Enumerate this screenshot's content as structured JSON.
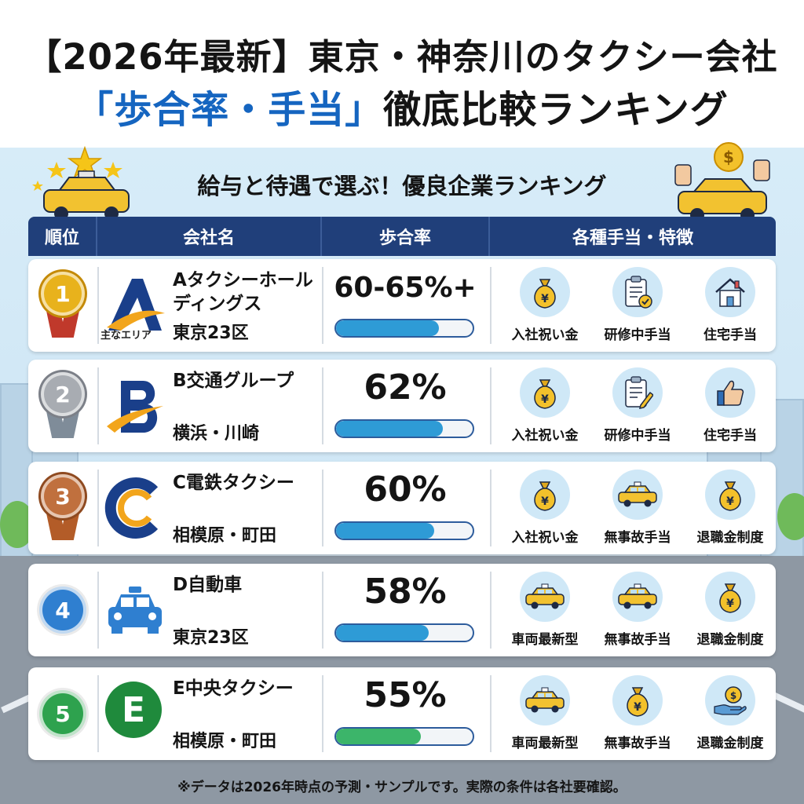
{
  "title": {
    "line1": "【2026年最新】東京・神奈川のタクシー会社",
    "line2_highlight": "「歩合率・手当」",
    "line2_rest": "徹底比較ランキング"
  },
  "subtitle": "給与と待遇で選ぶ！優良企業ランキング",
  "header": {
    "rank": "順位",
    "company": "会社名",
    "rate": "歩合率",
    "features": "各種手当・特徴"
  },
  "rows": [
    {
      "rank": "1",
      "logo_letter": "A",
      "area_caption": "主なエリア",
      "name": "Aタクシーホールディングス",
      "area": "東京23区",
      "rate": "60-65%+",
      "rate_fill": 0.75,
      "bar_color": "#2e9bd6",
      "medal": "gold",
      "features": [
        {
          "icon": "money-bag-icon",
          "label": "入社祝い金"
        },
        {
          "icon": "clipboard-check-icon",
          "label": "研修中手当"
        },
        {
          "icon": "house-icon",
          "label": "住宅手当"
        }
      ]
    },
    {
      "rank": "2",
      "logo_letter": "B",
      "name": "B交通グループ",
      "area": "横浜・川崎",
      "rate": "62%",
      "rate_fill": 0.78,
      "bar_color": "#2e9bd6",
      "medal": "silver",
      "features": [
        {
          "icon": "money-bag-icon",
          "label": "入社祝い金"
        },
        {
          "icon": "clipboard-pencil-icon",
          "label": "研修中手当"
        },
        {
          "icon": "thumbs-up-icon",
          "label": "住宅手当"
        }
      ]
    },
    {
      "rank": "3",
      "logo_letter": "C",
      "name": "C電鉄タクシー",
      "area": "相模原・町田",
      "rate": "60%",
      "rate_fill": 0.72,
      "bar_color": "#2e9bd6",
      "medal": "bronze",
      "features": [
        {
          "icon": "money-bag-icon",
          "label": "入社祝い金"
        },
        {
          "icon": "taxi-icon",
          "label": "無事故手当"
        },
        {
          "icon": "money-bag-icon",
          "label": "退職金制度"
        }
      ]
    },
    {
      "rank": "4",
      "logo_letter": "",
      "name": "D自動車",
      "area": "東京23区",
      "rate": "58%",
      "rate_fill": 0.68,
      "bar_color": "#2e9bd6",
      "medal": "blue",
      "features": [
        {
          "icon": "taxi-icon",
          "label": "車両最新型"
        },
        {
          "icon": "taxi-icon",
          "label": "無事故手当"
        },
        {
          "icon": "money-bag-icon",
          "label": "退職金制度"
        }
      ]
    },
    {
      "rank": "5",
      "logo_letter": "E",
      "name": "E中央タクシー",
      "area": "相模原・町田",
      "rate": "55%",
      "rate_fill": 0.62,
      "bar_color": "#3cb56a",
      "medal": "green",
      "features": [
        {
          "icon": "taxi-icon",
          "label": "車両最新型"
        },
        {
          "icon": "money-bag-icon",
          "label": "無事故手当"
        },
        {
          "icon": "hand-coin-icon",
          "label": "退職金制度"
        }
      ]
    }
  ],
  "footnote": "※データは2026年時点の予測・サンプルです。実際の条件は各社要確認。",
  "colors": {
    "header_bg": "#203f7a",
    "title_highlight": "#1565c0",
    "gold": "#e8b21c",
    "silver": "#a8acb2",
    "bronze": "#c0703e",
    "blue": "#2f7fd0",
    "green": "#2ea24e"
  }
}
